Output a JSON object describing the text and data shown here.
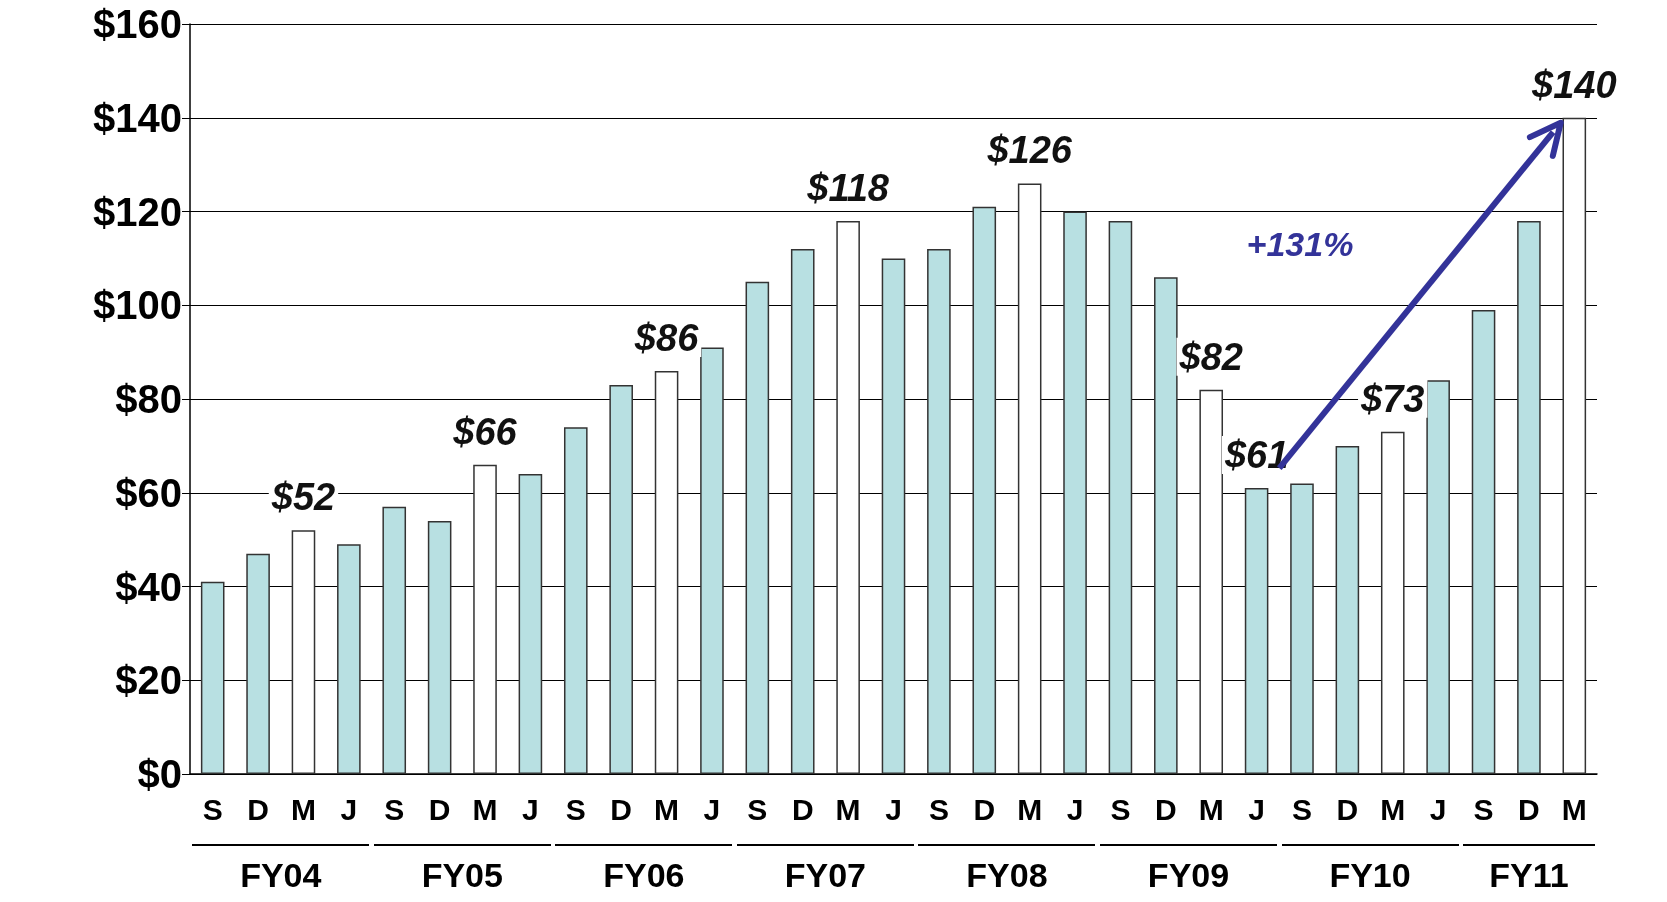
{
  "chart_data": {
    "type": "bar",
    "categories": [
      "S",
      "D",
      "M",
      "J",
      "S",
      "D",
      "M",
      "J",
      "S",
      "D",
      "M",
      "J",
      "S",
      "D",
      "M",
      "J",
      "S",
      "D",
      "M",
      "J",
      "S",
      "D",
      "M",
      "J",
      "S",
      "D",
      "M",
      "J",
      "S",
      "D",
      "M"
    ],
    "values": [
      41,
      47,
      52,
      49,
      57,
      54,
      66,
      64,
      74,
      83,
      86,
      91,
      105,
      112,
      118,
      110,
      112,
      121,
      126,
      120,
      118,
      106,
      82,
      61,
      62,
      70,
      73,
      84,
      99,
      118,
      140
    ],
    "value_labels": [
      null,
      null,
      "$52",
      null,
      null,
      null,
      "$66",
      null,
      null,
      null,
      "$86",
      null,
      null,
      null,
      "$118",
      null,
      null,
      null,
      "$126",
      null,
      null,
      null,
      "$82",
      "$61",
      null,
      null,
      "$73",
      null,
      null,
      null,
      "$140"
    ],
    "colors": [
      "#b8e0e2",
      "#b8e0e2",
      "#ffffff",
      "#b8e0e2",
      "#b8e0e2",
      "#b8e0e2",
      "#ffffff",
      "#b8e0e2",
      "#b8e0e2",
      "#b8e0e2",
      "#ffffff",
      "#b8e0e2",
      "#b8e0e2",
      "#b8e0e2",
      "#ffffff",
      "#b8e0e2",
      "#b8e0e2",
      "#b8e0e2",
      "#ffffff",
      "#b8e0e2",
      "#b8e0e2",
      "#b8e0e2",
      "#ffffff",
      "#b8e0e2",
      "#b8e0e2",
      "#b8e0e2",
      "#ffffff",
      "#b8e0e2",
      "#b8e0e2",
      "#b8e0e2",
      "#ffffff"
    ],
    "ylim": [
      0,
      160
    ],
    "yticks": [
      {
        "value": 0,
        "label": "$0"
      },
      {
        "value": 20,
        "label": "$20"
      },
      {
        "value": 40,
        "label": "$40"
      },
      {
        "value": 60,
        "label": "$60"
      },
      {
        "value": 80,
        "label": "$80"
      },
      {
        "value": 100,
        "label": "$100"
      },
      {
        "value": 120,
        "label": "$120"
      },
      {
        "value": 140,
        "label": "$140"
      },
      {
        "value": 160,
        "label": "$160"
      }
    ],
    "grid": true,
    "annotations": [
      "+131%",
      "FY04",
      "FY05",
      "FY06",
      "FY07",
      "FY08",
      "FY09",
      "FY10",
      "FY11"
    ]
  }
}
